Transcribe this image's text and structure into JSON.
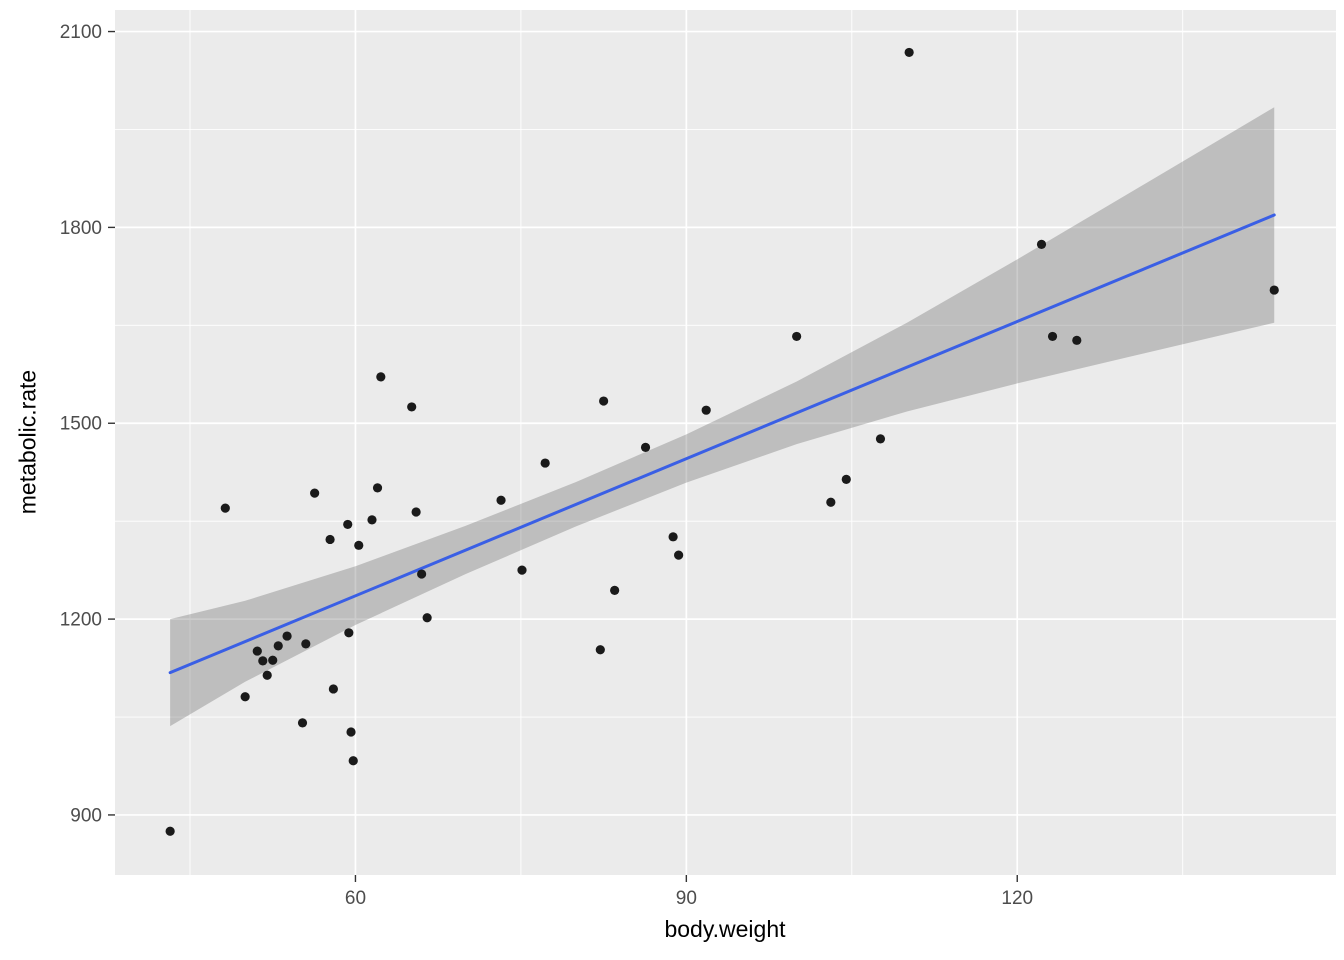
{
  "chart_data": {
    "type": "scatter",
    "title": "",
    "xlabel": "body.weight",
    "ylabel": "metabolic.rate",
    "xlim": [
      38.2,
      148.9
    ],
    "ylim": [
      808,
      2133
    ],
    "x_major_ticks": [
      60,
      90,
      120
    ],
    "x_minor_ticks": [
      45,
      75,
      105,
      135
    ],
    "y_major_ticks": [
      900,
      1200,
      1500,
      1800,
      2100
    ],
    "y_minor_ticks": [
      1050,
      1350,
      1650,
      1950
    ],
    "grid": true,
    "legend_position": "none",
    "panel_background": "#EBEBEB",
    "gridline_color": "#FFFFFF",
    "point_color": "#1A1A1A",
    "tick_mark_color": "#333333",
    "tick_label_color": "#4D4D4D",
    "axis_title_color": "#000000",
    "points": [
      [
        43.2,
        875
      ],
      [
        48.2,
        1370
      ],
      [
        50.0,
        1081
      ],
      [
        51.1,
        1151
      ],
      [
        51.6,
        1136
      ],
      [
        52.0,
        1114
      ],
      [
        52.5,
        1137
      ],
      [
        53.0,
        1159
      ],
      [
        53.8,
        1174
      ],
      [
        55.2,
        1041
      ],
      [
        55.5,
        1162
      ],
      [
        56.3,
        1393
      ],
      [
        57.7,
        1322
      ],
      [
        58.0,
        1093
      ],
      [
        59.3,
        1345
      ],
      [
        59.4,
        1179
      ],
      [
        59.6,
        1027
      ],
      [
        59.8,
        983
      ],
      [
        60.3,
        1313
      ],
      [
        61.5,
        1352
      ],
      [
        62.0,
        1401
      ],
      [
        62.3,
        1571
      ],
      [
        65.1,
        1525
      ],
      [
        65.5,
        1364
      ],
      [
        66.0,
        1269
      ],
      [
        66.5,
        1202
      ],
      [
        73.2,
        1382
      ],
      [
        75.1,
        1275
      ],
      [
        77.2,
        1439
      ],
      [
        82.2,
        1153
      ],
      [
        82.5,
        1534
      ],
      [
        83.5,
        1244
      ],
      [
        86.3,
        1463
      ],
      [
        88.8,
        1326
      ],
      [
        89.3,
        1298
      ],
      [
        91.8,
        1520
      ],
      [
        100.0,
        1633
      ],
      [
        103.1,
        1379
      ],
      [
        104.5,
        1414
      ],
      [
        107.6,
        1476
      ],
      [
        110.2,
        2068
      ],
      [
        122.2,
        1774
      ],
      [
        123.2,
        1633
      ],
      [
        125.4,
        1627
      ],
      [
        143.3,
        1704
      ]
    ],
    "regression_line": {
      "x": [
        43.2,
        143.3
      ],
      "y": [
        1118,
        1819
      ],
      "color": "#3A5FE5"
    },
    "confidence_ribbon": {
      "fill": "rgba(100,100,100,0.33)",
      "x": [
        43.2,
        50,
        60,
        70,
        80,
        90,
        100,
        110,
        120,
        130,
        143.3
      ],
      "lower": [
        1036,
        1104,
        1191,
        1269,
        1342,
        1409,
        1468,
        1518,
        1561,
        1601,
        1654
      ],
      "upper": [
        1200,
        1228,
        1281,
        1343,
        1410,
        1483,
        1564,
        1654,
        1751,
        1851,
        1984
      ]
    }
  }
}
